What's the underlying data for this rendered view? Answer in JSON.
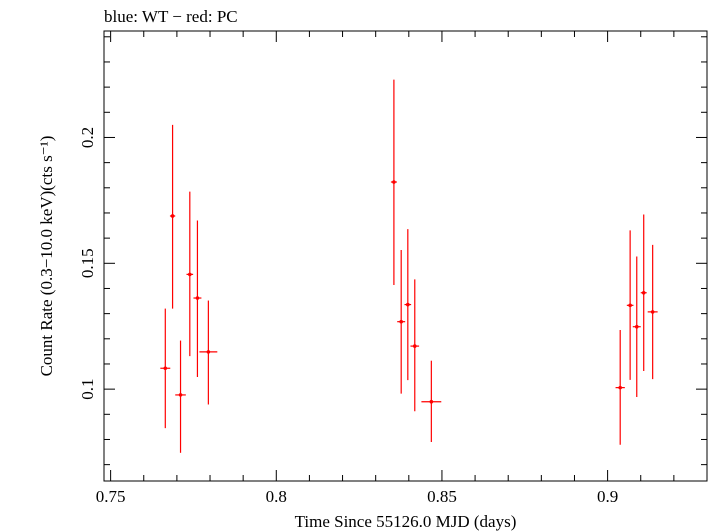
{
  "chart_data": {
    "type": "scatter",
    "title": "blue: WT − red: PC",
    "xlabel": "Time Since 55126.0 MJD (days)",
    "ylabel": "Count Rate (0.3−10.0 keV)(cts s⁻¹)",
    "xlim": [
      0.748,
      0.93
    ],
    "ylim": [
      0.0635,
      0.2423
    ],
    "xticks": [
      0.75,
      0.8,
      0.85,
      0.9
    ],
    "xtick_labels": [
      "0.75",
      "0.8",
      "0.85",
      "0.9"
    ],
    "yticks": [
      0.1,
      0.15,
      0.2
    ],
    "ytick_labels": [
      "0.1",
      "0.15",
      "0.2"
    ],
    "grid": false,
    "series": [
      {
        "color": "#ff0000",
        "points": [
          {
            "x": 0.7665,
            "y": 0.1083,
            "xerr": 0.0015,
            "ylo": 0.0845,
            "yhi": 0.132
          },
          {
            "x": 0.7687,
            "y": 0.1688,
            "xerr": 0.0008,
            "ylo": 0.132,
            "yhi": 0.205
          },
          {
            "x": 0.7711,
            "y": 0.0977,
            "xerr": 0.0016,
            "ylo": 0.0747,
            "yhi": 0.1193
          },
          {
            "x": 0.7739,
            "y": 0.1456,
            "xerr": 0.001,
            "ylo": 0.1131,
            "yhi": 0.1785
          },
          {
            "x": 0.7762,
            "y": 0.1362,
            "xerr": 0.0012,
            "ylo": 0.1048,
            "yhi": 0.167
          },
          {
            "x": 0.7795,
            "y": 0.1148,
            "xerr": 0.0027,
            "ylo": 0.0939,
            "yhi": 0.1352
          },
          {
            "x": 0.8355,
            "y": 0.1823,
            "xerr": 0.0009,
            "ylo": 0.1414,
            "yhi": 0.223
          },
          {
            "x": 0.8377,
            "y": 0.1268,
            "xerr": 0.0012,
            "ylo": 0.0982,
            "yhi": 0.1553
          },
          {
            "x": 0.8397,
            "y": 0.1336,
            "xerr": 0.001,
            "ylo": 0.1036,
            "yhi": 0.1636
          },
          {
            "x": 0.8418,
            "y": 0.1171,
            "xerr": 0.0013,
            "ylo": 0.0912,
            "yhi": 0.1436
          },
          {
            "x": 0.8468,
            "y": 0.095,
            "xerr": 0.003,
            "ylo": 0.079,
            "yhi": 0.1113
          },
          {
            "x": 0.9038,
            "y": 0.1006,
            "xerr": 0.0014,
            "ylo": 0.0779,
            "yhi": 0.1235
          },
          {
            "x": 0.9068,
            "y": 0.1333,
            "xerr": 0.001,
            "ylo": 0.1037,
            "yhi": 0.1631
          },
          {
            "x": 0.9088,
            "y": 0.1248,
            "xerr": 0.0012,
            "ylo": 0.0969,
            "yhi": 0.1527
          },
          {
            "x": 0.9109,
            "y": 0.1383,
            "xerr": 0.0009,
            "ylo": 0.1072,
            "yhi": 0.1694
          },
          {
            "x": 0.9136,
            "y": 0.1307,
            "xerr": 0.0015,
            "ylo": 0.104,
            "yhi": 0.1573
          }
        ]
      }
    ]
  }
}
